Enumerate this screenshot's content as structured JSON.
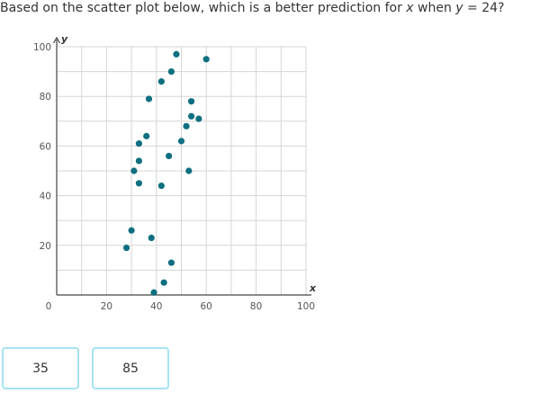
{
  "question": {
    "prefix": "Based on the scatter plot below, which is a better prediction for ",
    "var_x": "x",
    "middle": " when ",
    "var_y": "y",
    "suffix": " = 24?"
  },
  "chart_data": {
    "type": "scatter",
    "title": "",
    "xlabel": "x",
    "ylabel": "y",
    "xlim": [
      0,
      100
    ],
    "ylim": [
      0,
      100
    ],
    "x_ticks": [
      0,
      20,
      40,
      60,
      80,
      100
    ],
    "y_ticks": [
      20,
      40,
      60,
      80,
      100
    ],
    "grid": true,
    "point_color": "#0e6f80",
    "points": [
      {
        "x": 48,
        "y": 97
      },
      {
        "x": 60,
        "y": 95
      },
      {
        "x": 46,
        "y": 90
      },
      {
        "x": 42,
        "y": 86
      },
      {
        "x": 37,
        "y": 79
      },
      {
        "x": 54,
        "y": 78
      },
      {
        "x": 54,
        "y": 72
      },
      {
        "x": 57,
        "y": 71
      },
      {
        "x": 52,
        "y": 68
      },
      {
        "x": 36,
        "y": 64
      },
      {
        "x": 33,
        "y": 61
      },
      {
        "x": 50,
        "y": 62
      },
      {
        "x": 45,
        "y": 56
      },
      {
        "x": 33,
        "y": 54
      },
      {
        "x": 31,
        "y": 50
      },
      {
        "x": 53,
        "y": 50
      },
      {
        "x": 33,
        "y": 45
      },
      {
        "x": 42,
        "y": 44
      },
      {
        "x": 30,
        "y": 26
      },
      {
        "x": 38,
        "y": 23
      },
      {
        "x": 28,
        "y": 19
      },
      {
        "x": 46,
        "y": 13
      },
      {
        "x": 43,
        "y": 5
      },
      {
        "x": 39,
        "y": 1
      }
    ]
  },
  "answers": [
    {
      "label": "35"
    },
    {
      "label": "85"
    }
  ]
}
